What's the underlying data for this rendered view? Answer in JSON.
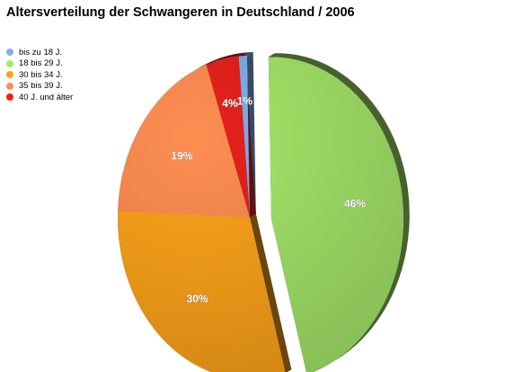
{
  "chart_data": {
    "type": "pie",
    "title": "Altersverteilung der Schwangeren in Deutschland / 2006",
    "legend_position": "top-left",
    "exploded_slice": "18 bis 29 J.",
    "slices": [
      {
        "label": "bis zu 18 J.",
        "value": 1,
        "value_label": "1%",
        "color": "#7fb0ee"
      },
      {
        "label": "18 bis 29 J.",
        "value": 46,
        "value_label": "46%",
        "color": "#a6e86a"
      },
      {
        "label": "30 bis 34 J.",
        "value": 30,
        "value_label": "30%",
        "color": "#ffa51a"
      },
      {
        "label": "35 bis 39 J.",
        "value": 19,
        "value_label": "19%",
        "color": "#ff8e52"
      },
      {
        "label": "40 J. und älter",
        "value": 4,
        "value_label": "4%",
        "color": "#e8211c"
      }
    ]
  }
}
